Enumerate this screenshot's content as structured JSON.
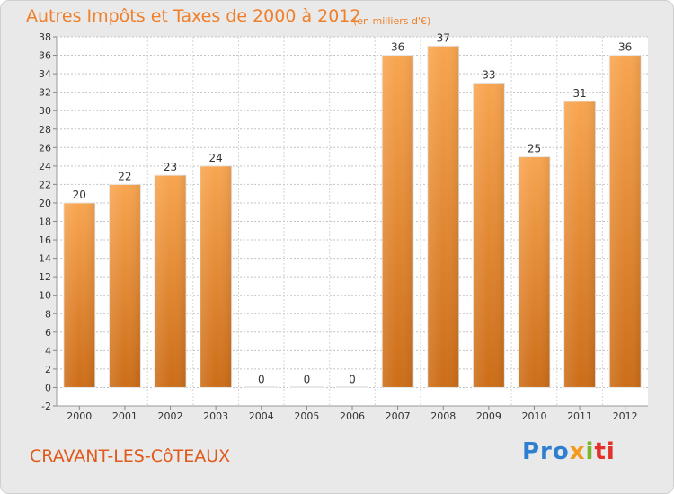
{
  "title": "Autres Impôts et Taxes de 2000 à 2012",
  "subtitle": "(en milliers d'€)",
  "commune": "CRAVANT-LES-CôTEAUX",
  "logo": {
    "p1": "Pro",
    "p2": "x",
    "p3": "i",
    "p4": "ti"
  },
  "colors": {
    "bar_light": "#f8a550",
    "bar_dark": "#cc6d18",
    "title": "#f07f2a",
    "grid": "#c4c4c4"
  },
  "chart_data": {
    "type": "bar",
    "categories": [
      "2000",
      "2001",
      "2002",
      "2003",
      "2004",
      "2005",
      "2006",
      "2007",
      "2008",
      "2009",
      "2010",
      "2011",
      "2012"
    ],
    "values": [
      20,
      22,
      23,
      24,
      0,
      0,
      0,
      36,
      37,
      33,
      25,
      31,
      36
    ],
    "data_labels": [
      "20",
      "22",
      "23",
      "24",
      "0",
      "0",
      "0",
      "36",
      "37",
      "33",
      "25",
      "31",
      "36"
    ],
    "ylim": [
      -2,
      38
    ],
    "yticks": [
      -2,
      0,
      2,
      4,
      6,
      8,
      10,
      12,
      14,
      16,
      18,
      20,
      22,
      24,
      26,
      28,
      30,
      32,
      34,
      36,
      38
    ],
    "grid": true,
    "legend": "none"
  }
}
